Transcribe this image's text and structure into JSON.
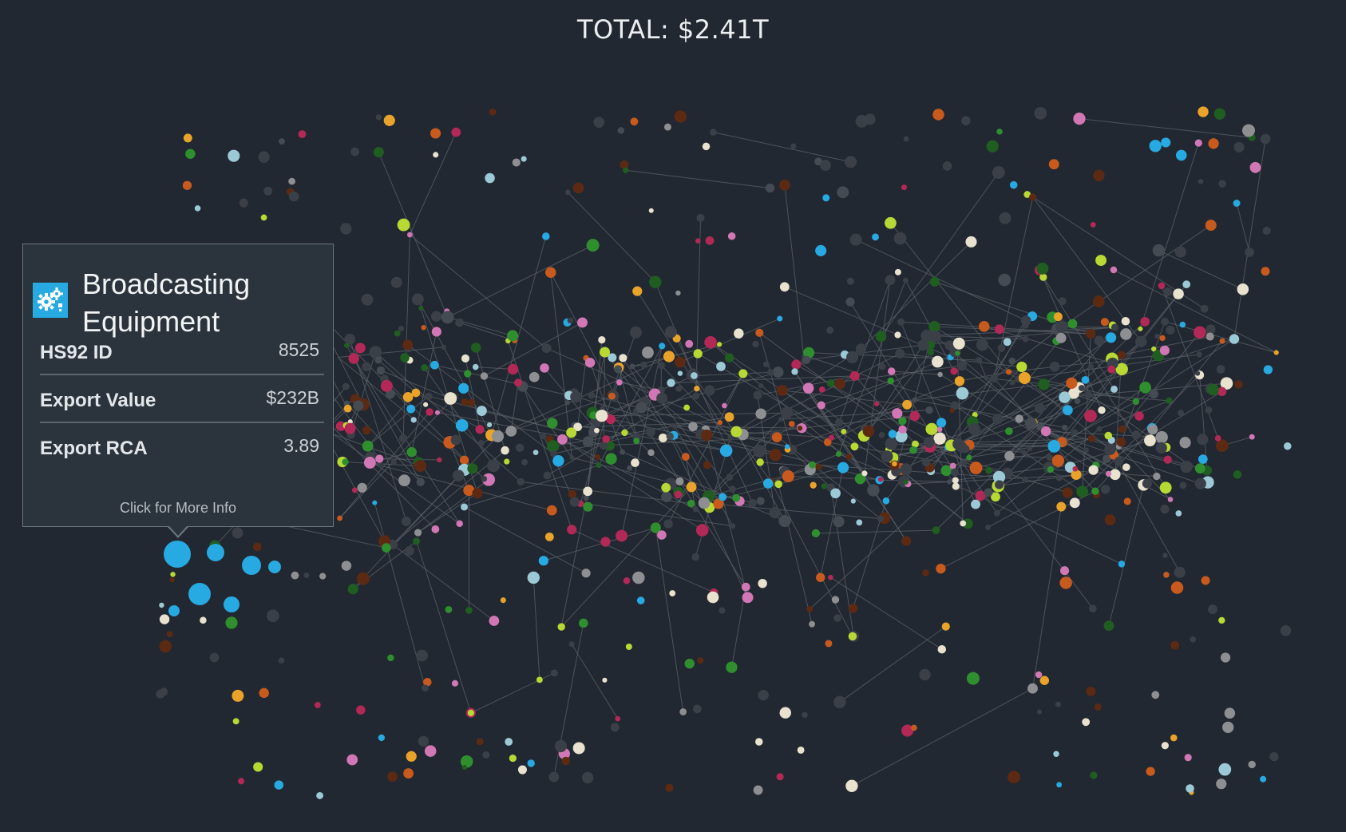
{
  "header": {
    "total_label": "TOTAL: $2.41T"
  },
  "tooltip": {
    "icon": "gears-icon",
    "title": "Broadcasting Equipment",
    "rows": [
      {
        "label": "HS92 ID",
        "value": "8525"
      },
      {
        "label": "Export Value",
        "value": "$232B"
      },
      {
        "label": "Export RCA",
        "value": "3.89"
      }
    ],
    "more_link": "Click for More Info"
  },
  "colors": {
    "background": "#222831",
    "edge": "#5c6168",
    "node_default": "#3b4048",
    "machinery": "#27a9e1",
    "highlight": "#27a9e1"
  },
  "graph": {
    "type": "product-space-network",
    "selected_node": "Broadcasting Equipment"
  }
}
